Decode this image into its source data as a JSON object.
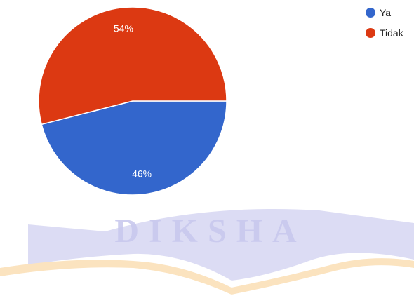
{
  "chart_data": {
    "type": "pie",
    "slices": [
      {
        "label": "Ya",
        "value": 46,
        "color": "#3366cc",
        "display": "46%"
      },
      {
        "label": "Tidak",
        "value": 54,
        "color": "#dc3912",
        "display": "54%"
      }
    ],
    "legend_position": "top-right"
  },
  "watermark": {
    "text": "DIKSHA",
    "colors": {
      "band": "#d6d6f2",
      "stripe": "#fbe3bf"
    }
  }
}
